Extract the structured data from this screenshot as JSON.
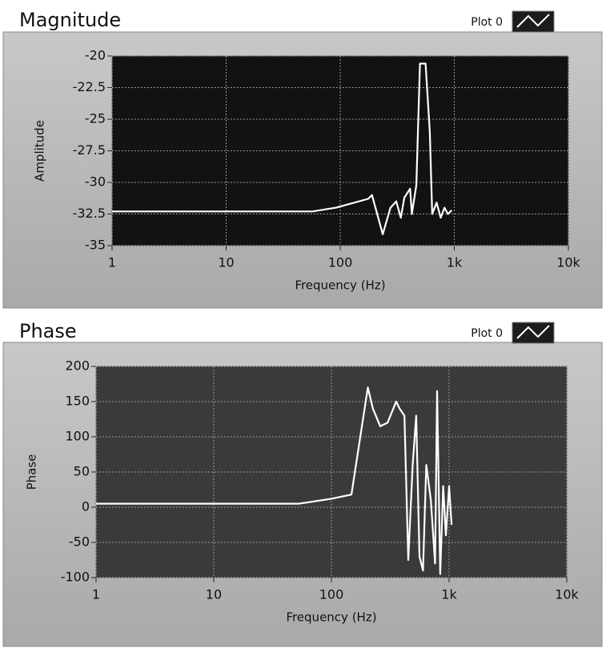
{
  "chart_data": [
    {
      "type": "line",
      "title": "Magnitude",
      "x_label": "Frequency (Hz)",
      "y_label": "Amplitude",
      "xscale": "log",
      "grid": true,
      "xlim": [
        1,
        10000
      ],
      "xticks": [
        1,
        10,
        100,
        {
          "value": 1000,
          "label": "1k"
        },
        {
          "value": 10000,
          "label": "10k"
        }
      ],
      "ylim": [
        -35,
        -20
      ],
      "yticks": [
        -20,
        -22.5,
        -25,
        -27.5,
        -30,
        -32.5,
        -35
      ],
      "x": [
        1,
        10,
        57,
        92,
        176,
        190,
        236,
        276,
        310,
        340,
        365,
        410,
        425,
        465,
        500,
        560,
        610,
        640,
        700,
        760,
        820,
        880,
        950
      ],
      "series": [
        {
          "name": "Plot 0",
          "color": "#ffffff",
          "values": [
            -32.3,
            -32.3,
            -32.3,
            -32.0,
            -31.3,
            -31.0,
            -34.1,
            -32.0,
            -31.5,
            -32.8,
            -31.2,
            -30.5,
            -32.5,
            -30.2,
            -20.6,
            -20.6,
            -26.0,
            -32.5,
            -31.6,
            -32.8,
            -32.0,
            -32.5,
            -32.2
          ]
        }
      ]
    },
    {
      "type": "line",
      "title": "Phase",
      "x_label": "Frequency (Hz)",
      "y_label": "Phase",
      "xscale": "log",
      "grid": true,
      "xlim": [
        1,
        10000
      ],
      "xticks": [
        1,
        10,
        100,
        {
          "value": 1000,
          "label": "1k"
        },
        {
          "value": 10000,
          "label": "10k"
        }
      ],
      "ylim": [
        -100,
        200
      ],
      "yticks": [
        200,
        150,
        100,
        50,
        0,
        -50,
        -100
      ],
      "x": [
        1,
        10,
        53,
        100,
        148,
        204,
        225,
        260,
        300,
        355,
        380,
        417,
        450,
        490,
        525,
        560,
        600,
        640,
        700,
        760,
        790,
        840,
        890,
        940,
        1000,
        1050
      ],
      "series": [
        {
          "name": "Plot 0",
          "color": "#ffffff",
          "values": [
            5,
            5,
            5,
            12,
            18,
            170,
            140,
            115,
            120,
            150,
            140,
            130,
            -75,
            60,
            130,
            -70,
            -90,
            60,
            10,
            -80,
            165,
            -95,
            30,
            -40,
            30,
            -25
          ]
        }
      ]
    }
  ]
}
